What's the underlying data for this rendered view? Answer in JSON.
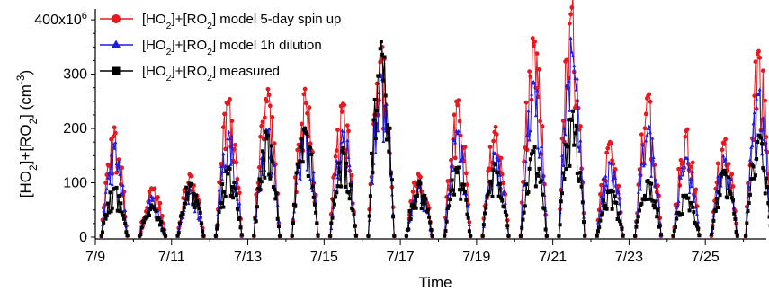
{
  "chart_data": {
    "type": "line",
    "xlabel": "Time",
    "ylabel_parts": [
      "[HO",
      "2",
      "]+[RO",
      "2",
      "] (cm",
      "-3",
      ")"
    ],
    "y_ticks": [
      0,
      100,
      200,
      300,
      400
    ],
    "y_tick_labels": [
      "0",
      "100",
      "200",
      "300",
      ""
    ],
    "y_top_label": {
      "base": "400x10",
      "exp": "6"
    },
    "ylim": [
      0,
      420
    ],
    "x_ticks": [
      "7/9",
      "7/11",
      "7/13",
      "7/15",
      "7/17",
      "7/19",
      "7/21",
      "7/23",
      "7/25"
    ],
    "x_tick_days": [
      9,
      11,
      13,
      15,
      17,
      19,
      21,
      23,
      25
    ],
    "xlim": [
      9,
      26.6
    ],
    "units": "cm-3 (x10^6)",
    "grid": false,
    "legend_position": "top-left",
    "series": [
      {
        "name_parts": [
          "[HO",
          "2",
          "]+[RO",
          "2",
          "]  model 5-day spin up"
        ],
        "color": "#e8191e",
        "marker": "circle",
        "daily_peaks": [
          {
            "day": 9.5,
            "value": 200
          },
          {
            "day": 10.5,
            "value": 95
          },
          {
            "day": 11.5,
            "value": 120
          },
          {
            "day": 12.5,
            "value": 260
          },
          {
            "day": 13.5,
            "value": 275
          },
          {
            "day": 14.5,
            "value": 270
          },
          {
            "day": 15.5,
            "value": 250
          },
          {
            "day": 16.5,
            "value": 360
          },
          {
            "day": 17.5,
            "value": 120
          },
          {
            "day": 18.5,
            "value": 265
          },
          {
            "day": 19.5,
            "value": 210
          },
          {
            "day": 20.5,
            "value": 375
          },
          {
            "day": 21.5,
            "value": 440
          },
          {
            "day": 22.5,
            "value": 185
          },
          {
            "day": 23.5,
            "value": 270
          },
          {
            "day": 24.5,
            "value": 200
          },
          {
            "day": 25.5,
            "value": 190
          },
          {
            "day": 26.4,
            "value": 350
          }
        ]
      },
      {
        "name_parts": [
          "[HO",
          "2",
          "]+[RO",
          "2",
          "]  model 1h dilution"
        ],
        "color": "#1c1ce6",
        "marker": "triangle",
        "daily_peaks": [
          {
            "day": 9.5,
            "value": 175
          },
          {
            "day": 10.5,
            "value": 75
          },
          {
            "day": 11.5,
            "value": 90
          },
          {
            "day": 12.5,
            "value": 200
          },
          {
            "day": 13.5,
            "value": 210
          },
          {
            "day": 14.5,
            "value": 215
          },
          {
            "day": 15.5,
            "value": 195
          },
          {
            "day": 16.5,
            "value": 300
          },
          {
            "day": 17.5,
            "value": 95
          },
          {
            "day": 18.5,
            "value": 205
          },
          {
            "day": 19.5,
            "value": 165
          },
          {
            "day": 20.5,
            "value": 300
          },
          {
            "day": 21.5,
            "value": 365
          },
          {
            "day": 22.5,
            "value": 150
          },
          {
            "day": 23.5,
            "value": 210
          },
          {
            "day": 24.5,
            "value": 160
          },
          {
            "day": 25.5,
            "value": 150
          },
          {
            "day": 26.4,
            "value": 280
          }
        ]
      },
      {
        "name_parts": [
          "[HO",
          "2",
          "]+[RO",
          "2",
          "]  measured"
        ],
        "color": "#000000",
        "marker": "square",
        "daily_peaks": [
          {
            "day": 9.5,
            "value": 95
          },
          {
            "day": 10.5,
            "value": 60
          },
          {
            "day": 11.5,
            "value": 100
          },
          {
            "day": 12.5,
            "value": 130
          },
          {
            "day": 13.5,
            "value": 195
          },
          {
            "day": 14.5,
            "value": 210
          },
          {
            "day": 15.5,
            "value": 165
          },
          {
            "day": 16.5,
            "value": 365
          },
          {
            "day": 17.5,
            "value": 100
          },
          {
            "day": 18.5,
            "value": 130
          },
          {
            "day": 19.5,
            "value": 135
          },
          {
            "day": 20.5,
            "value": 165
          },
          {
            "day": 21.5,
            "value": 230
          },
          {
            "day": 22.5,
            "value": 90
          },
          {
            "day": 23.5,
            "value": 110
          },
          {
            "day": 24.5,
            "value": 80
          },
          {
            "day": 25.5,
            "value": 125
          },
          {
            "day": 26.4,
            "value": 195
          }
        ]
      }
    ]
  }
}
